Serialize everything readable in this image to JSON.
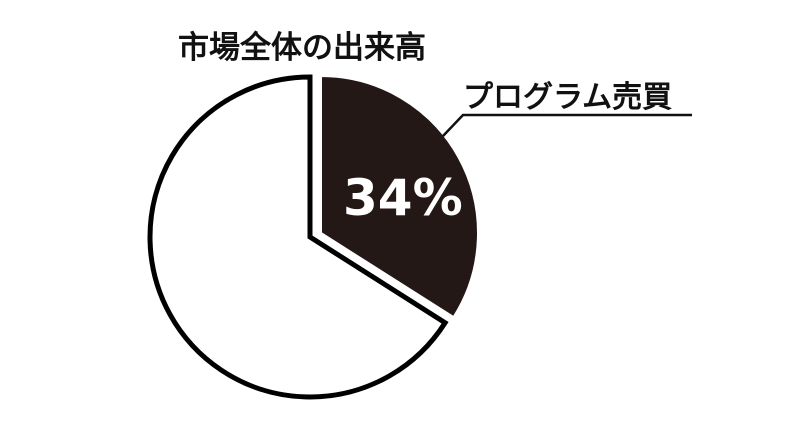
{
  "chart_data": {
    "type": "pie",
    "title": "",
    "slices": [
      {
        "label": "プログラム売買",
        "value": 34,
        "value_label": "34%",
        "color": "#231815",
        "exploded": true
      },
      {
        "label": "市場全体の出来高",
        "value": 66,
        "value_label": "",
        "color": "#ffffff",
        "exploded": false
      }
    ],
    "outline_color": "#000000",
    "legend": "none"
  }
}
